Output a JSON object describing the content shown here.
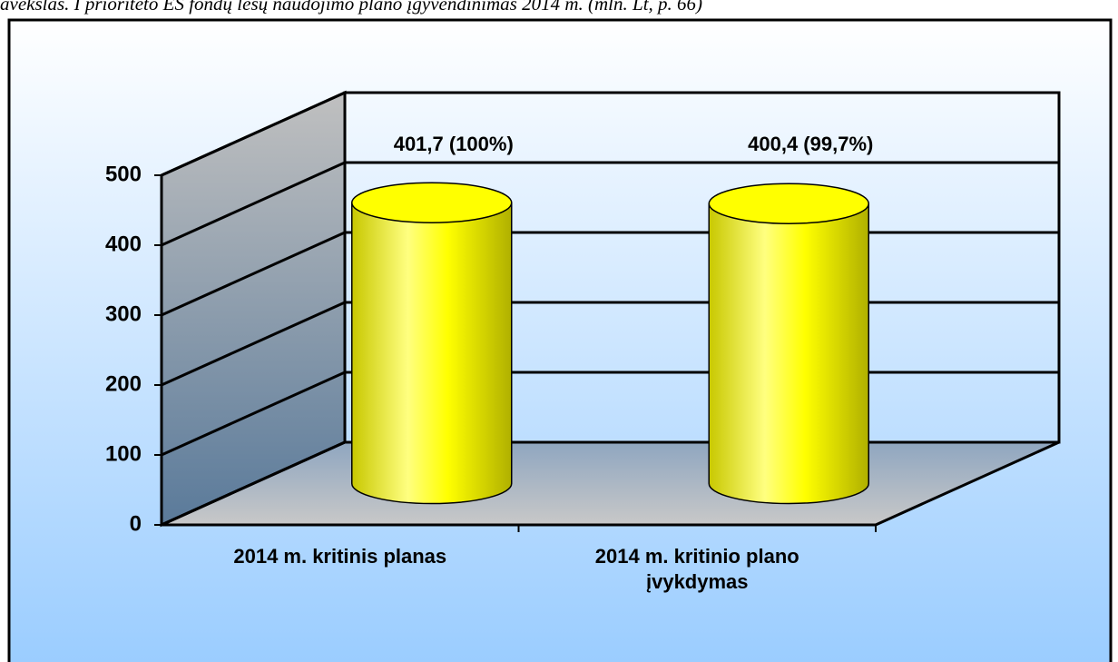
{
  "chart_data": {
    "type": "bar",
    "title": "avekslas. I prioriteto ES fondų lėšų naudojimo plano įgyvendinimas 2014 m. (mln. Lt, p. 66)",
    "categories": [
      "2014 m. kritinis planas",
      "2014 m. kritinio plano įvykdymas"
    ],
    "values": [
      401.7,
      400.4
    ],
    "value_labels": [
      "401,7 (100%)",
      "400,4 (99,7%)"
    ],
    "color": "#ffff00",
    "ylim": [
      0,
      500
    ],
    "yticks": [
      0,
      100,
      200,
      300,
      400,
      500
    ],
    "grid": true
  }
}
